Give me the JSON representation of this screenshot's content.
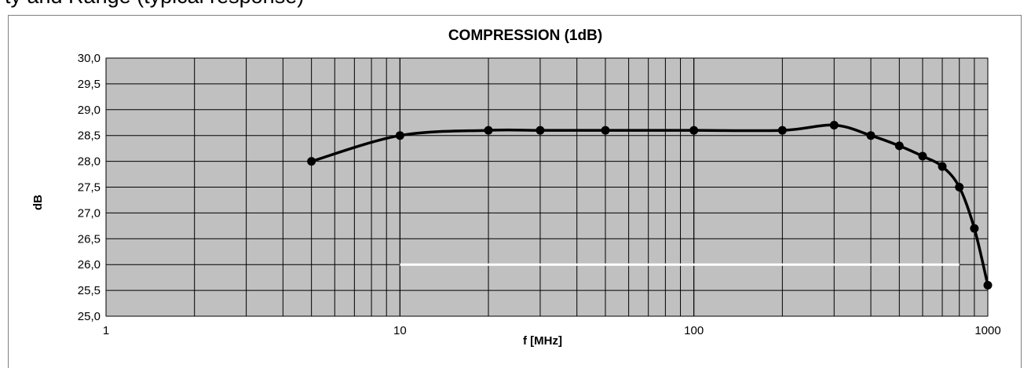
{
  "clipped_heading": "ty and Range (typical response)",
  "chart_data": {
    "type": "line",
    "title": "COMPRESSION (1dB)",
    "xlabel": "f [MHz]",
    "ylabel": "dB",
    "xscale": "log",
    "xlim": [
      1,
      1000
    ],
    "ylim": [
      25.0,
      30.0
    ],
    "grid": true,
    "plot_background": "#c0c0c0",
    "line_color": "#000000",
    "x_tick_labels": [
      "1",
      "10",
      "100",
      "1000"
    ],
    "y_tick_labels": [
      "25,0",
      "25,5",
      "26,0",
      "26,5",
      "27,0",
      "27,5",
      "28,0",
      "28,5",
      "29,0",
      "29,5",
      "30,0"
    ],
    "series": [
      {
        "x": [
          5,
          10,
          20,
          30,
          50,
          100,
          200,
          300,
          400,
          500,
          600,
          700,
          800,
          900,
          1000
        ],
        "y": [
          28.0,
          28.5,
          28.6,
          28.6,
          28.6,
          28.6,
          28.6,
          28.7,
          28.5,
          28.3,
          28.1,
          27.9,
          27.5,
          26.7,
          25.6
        ]
      }
    ],
    "reference_line": {
      "x": [
        10,
        800
      ],
      "y": 26.0,
      "color": "#ffffff"
    }
  }
}
